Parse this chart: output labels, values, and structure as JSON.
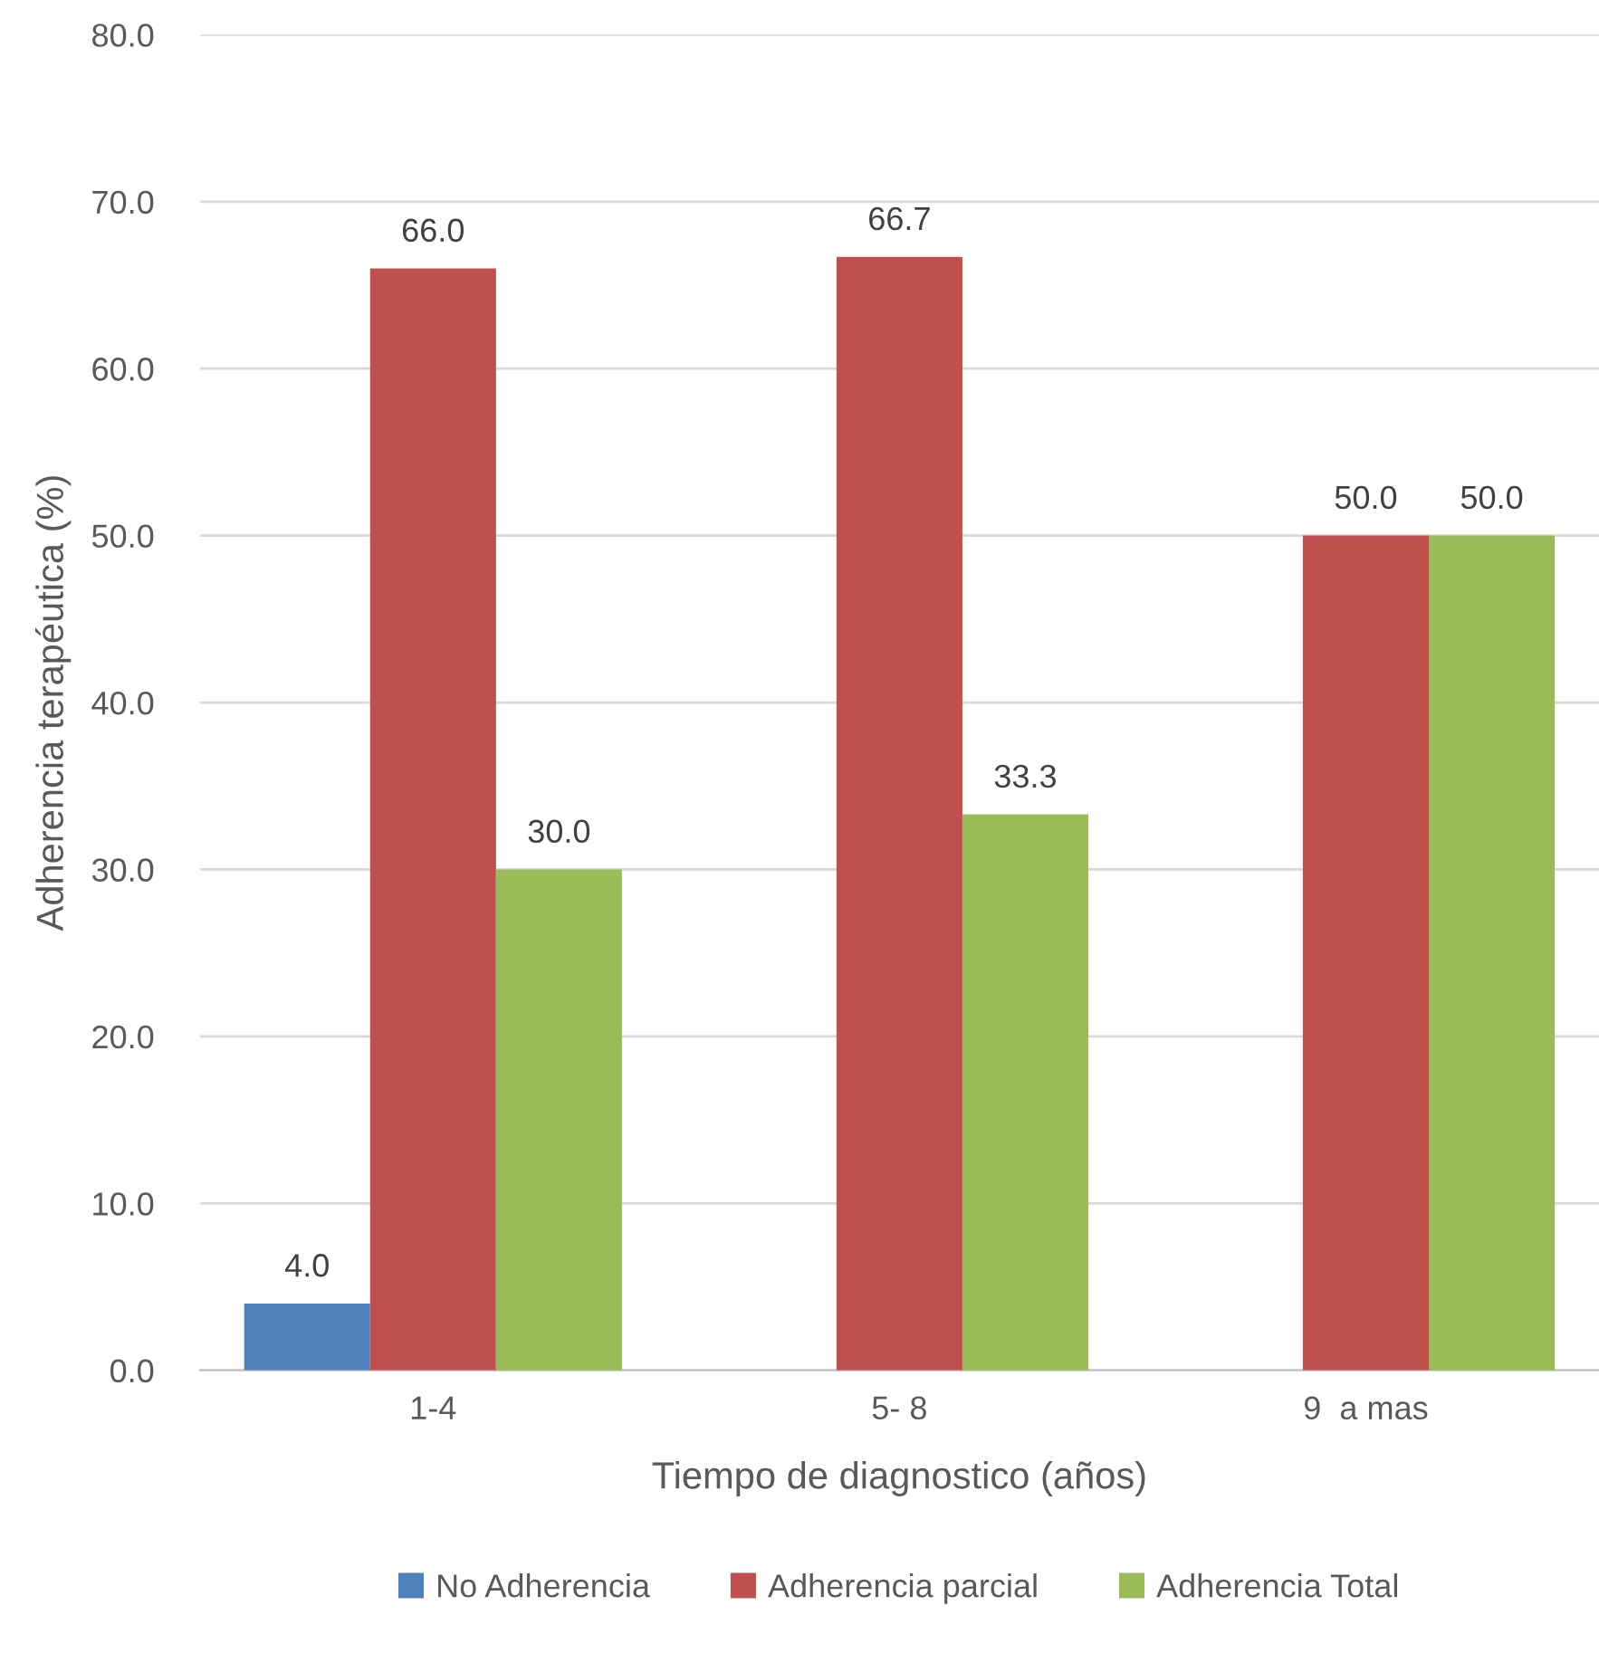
{
  "chart_data": {
    "type": "bar",
    "xlabel": "Tiempo de diagnostico (años)",
    "ylabel": "Adherencia terapéutica (%)",
    "categories": [
      "1-4",
      "5- 8",
      "9  a mas"
    ],
    "series": [
      {
        "name": "No Adherencia",
        "color": "#4f81bd",
        "values": [
          4.0,
          null,
          null
        ],
        "value_labels": [
          "4.0",
          null,
          null
        ]
      },
      {
        "name": "Adherencia parcial",
        "color": "#c0504d",
        "values": [
          66.0,
          66.7,
          50.0
        ],
        "value_labels": [
          "66.0",
          "66.7",
          "50.0"
        ]
      },
      {
        "name": "Adherencia Total",
        "color": "#9bbb59",
        "values": [
          30.0,
          33.3,
          50.0
        ],
        "value_labels": [
          "30.0",
          "33.3",
          "50.0"
        ]
      }
    ],
    "ylim": [
      0,
      80
    ],
    "yticks": [
      {
        "value": 0,
        "label": "0.0"
      },
      {
        "value": 10,
        "label": "10.0"
      },
      {
        "value": 20,
        "label": "20.0"
      },
      {
        "value": 30,
        "label": "30.0"
      },
      {
        "value": 40,
        "label": "40.0"
      },
      {
        "value": 50,
        "label": "50.0"
      },
      {
        "value": 60,
        "label": "60.0"
      },
      {
        "value": 70,
        "label": "70.0"
      },
      {
        "value": 80,
        "label": "80.0"
      }
    ],
    "grid": "y",
    "legend": "bottom"
  }
}
